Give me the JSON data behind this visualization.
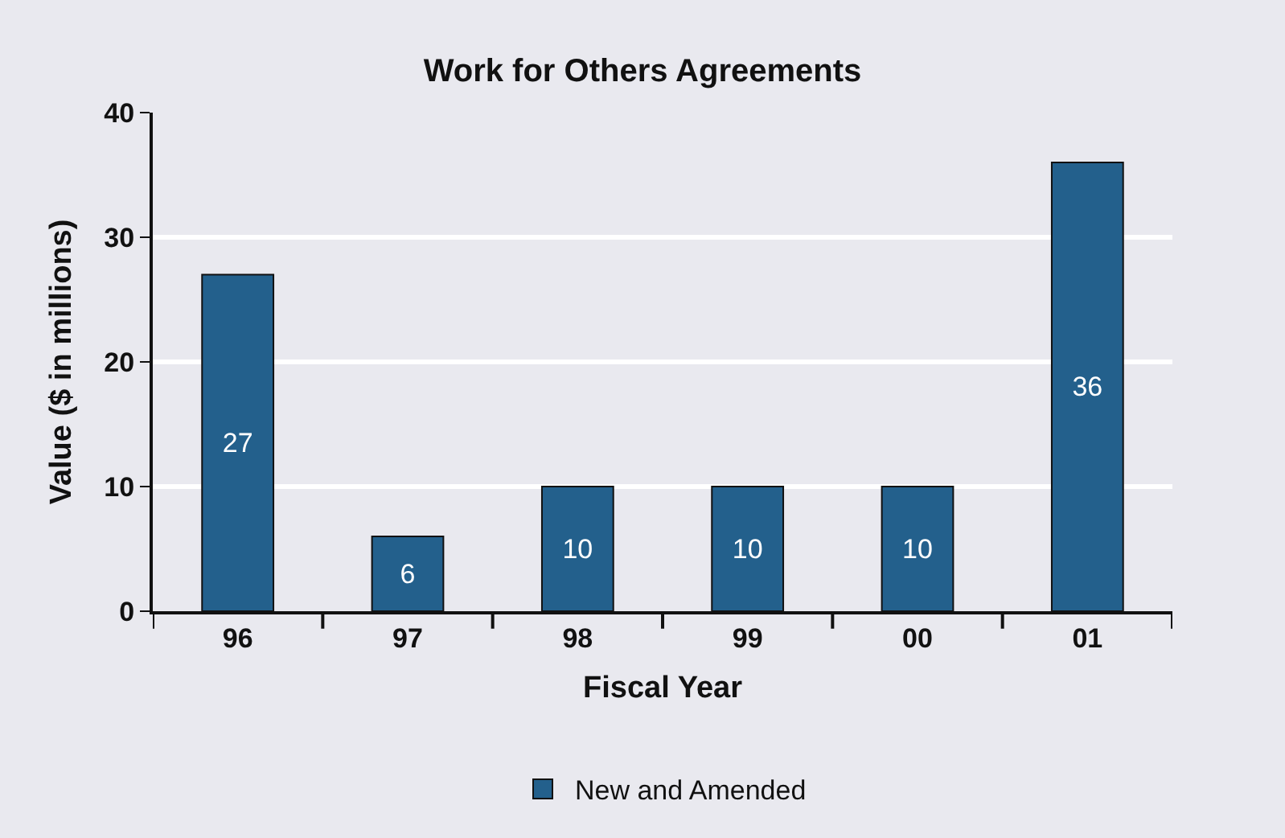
{
  "chart_data": {
    "type": "bar",
    "title": "Work for Others Agreements",
    "xlabel": "Fiscal Year",
    "ylabel": "Value ($ in millions)",
    "categories": [
      "96",
      "97",
      "98",
      "99",
      "00",
      "01"
    ],
    "series": [
      {
        "name": "New and Amended",
        "color": "#23608c",
        "values": [
          27,
          6,
          10,
          10,
          10,
          36
        ]
      }
    ],
    "ylim": [
      0,
      40
    ],
    "yticks": [
      0,
      10,
      20,
      30,
      40
    ],
    "grid": "y",
    "legend": "bottom",
    "data_labels": true
  }
}
